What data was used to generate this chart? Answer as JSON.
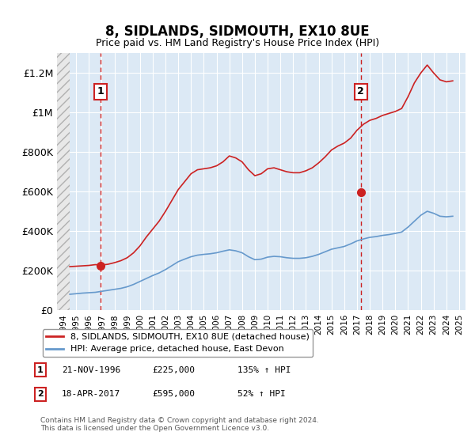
{
  "title": "8, SIDLANDS, SIDMOUTH, EX10 8UE",
  "subtitle": "Price paid vs. HM Land Registry's House Price Index (HPI)",
  "ylabel_ticks": [
    0,
    200000,
    400000,
    600000,
    800000,
    1000000,
    1200000
  ],
  "ylabel_labels": [
    "£0",
    "£200K",
    "£400K",
    "£600K",
    "£800K",
    "£1M",
    "£1.2M"
  ],
  "ylim": [
    0,
    1300000
  ],
  "xlim_start": 1993.5,
  "xlim_end": 2025.5,
  "hpi_color": "#6699cc",
  "price_color": "#cc2222",
  "bg_color": "#dce9f5",
  "hatch_color": "#c0c0c0",
  "point1_x": 1996.9,
  "point1_y": 225000,
  "point1_label": "1",
  "point1_date": "21-NOV-1996",
  "point1_price": "£225,000",
  "point1_hpi": "135% ↑ HPI",
  "point2_x": 2017.3,
  "point2_y": 595000,
  "point2_label": "2",
  "point2_date": "18-APR-2017",
  "point2_price": "£595,000",
  "point2_hpi": "52% ↑ HPI",
  "legend_label_price": "8, SIDLANDS, SIDMOUTH, EX10 8UE (detached house)",
  "legend_label_hpi": "HPI: Average price, detached house, East Devon",
  "footer": "Contains HM Land Registry data © Crown copyright and database right 2024.\nThis data is licensed under the Open Government Licence v3.0.",
  "hpi_line_x": [
    1994.5,
    1995.0,
    1995.5,
    1996.0,
    1996.5,
    1997.0,
    1997.5,
    1998.0,
    1998.5,
    1999.0,
    1999.5,
    2000.0,
    2000.5,
    2001.0,
    2001.5,
    2002.0,
    2002.5,
    2003.0,
    2003.5,
    2004.0,
    2004.5,
    2005.0,
    2005.5,
    2006.0,
    2006.5,
    2007.0,
    2007.5,
    2008.0,
    2008.5,
    2009.0,
    2009.5,
    2010.0,
    2010.5,
    2011.0,
    2011.5,
    2012.0,
    2012.5,
    2013.0,
    2013.5,
    2014.0,
    2014.5,
    2015.0,
    2015.5,
    2016.0,
    2016.5,
    2017.0,
    2017.5,
    2018.0,
    2018.5,
    2019.0,
    2019.5,
    2020.0,
    2020.5,
    2021.0,
    2021.5,
    2022.0,
    2022.5,
    2023.0,
    2023.5,
    2024.0,
    2024.5
  ],
  "hpi_line_y": [
    80000,
    83000,
    86000,
    88000,
    90000,
    95000,
    100000,
    105000,
    110000,
    118000,
    130000,
    145000,
    160000,
    175000,
    188000,
    205000,
    225000,
    245000,
    258000,
    270000,
    278000,
    282000,
    285000,
    290000,
    298000,
    305000,
    300000,
    290000,
    270000,
    255000,
    258000,
    268000,
    272000,
    270000,
    265000,
    262000,
    262000,
    265000,
    272000,
    282000,
    295000,
    308000,
    315000,
    322000,
    335000,
    350000,
    360000,
    368000,
    372000,
    378000,
    382000,
    388000,
    395000,
    420000,
    450000,
    480000,
    500000,
    490000,
    475000,
    472000,
    475000
  ],
  "price_line_x": [
    1994.5,
    1995.0,
    1995.5,
    1996.0,
    1996.5,
    1997.0,
    1997.5,
    1998.0,
    1998.5,
    1999.0,
    1999.5,
    2000.0,
    2000.5,
    2001.0,
    2001.5,
    2002.0,
    2002.5,
    2003.0,
    2003.5,
    2004.0,
    2004.5,
    2005.0,
    2005.5,
    2006.0,
    2006.5,
    2007.0,
    2007.5,
    2008.0,
    2008.5,
    2009.0,
    2009.5,
    2010.0,
    2010.5,
    2011.0,
    2011.5,
    2012.0,
    2012.5,
    2013.0,
    2013.5,
    2014.0,
    2014.5,
    2015.0,
    2015.5,
    2016.0,
    2016.5,
    2017.0,
    2017.5,
    2018.0,
    2018.5,
    2019.0,
    2019.5,
    2020.0,
    2020.5,
    2021.0,
    2021.5,
    2022.0,
    2022.5,
    2023.0,
    2023.5,
    2024.0,
    2024.5
  ],
  "price_line_y": [
    220000,
    222000,
    224000,
    226000,
    230000,
    228000,
    232000,
    240000,
    250000,
    265000,
    290000,
    325000,
    370000,
    410000,
    450000,
    500000,
    555000,
    610000,
    650000,
    690000,
    710000,
    715000,
    720000,
    730000,
    750000,
    780000,
    770000,
    750000,
    710000,
    680000,
    690000,
    715000,
    720000,
    710000,
    700000,
    695000,
    695000,
    705000,
    720000,
    745000,
    775000,
    810000,
    830000,
    845000,
    870000,
    910000,
    940000,
    960000,
    970000,
    985000,
    995000,
    1005000,
    1020000,
    1080000,
    1150000,
    1200000,
    1240000,
    1200000,
    1165000,
    1155000,
    1160000
  ],
  "hatch_end_x": 1994.5,
  "x_ticks": [
    1994,
    1995,
    1996,
    1997,
    1998,
    1999,
    2000,
    2001,
    2002,
    2003,
    2004,
    2005,
    2006,
    2007,
    2008,
    2009,
    2010,
    2011,
    2012,
    2013,
    2014,
    2015,
    2016,
    2017,
    2018,
    2019,
    2020,
    2021,
    2022,
    2023,
    2024,
    2025
  ]
}
